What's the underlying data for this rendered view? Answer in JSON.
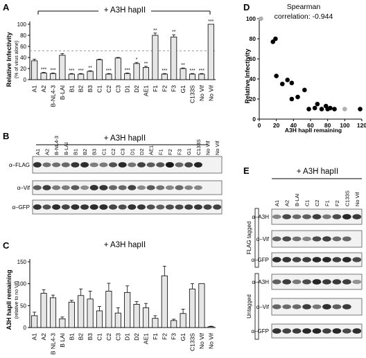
{
  "panel_letters": {
    "a": "A",
    "b": "B",
    "c": "C",
    "d": "D",
    "e": "E"
  },
  "treatment_label": "+ A3H hapII",
  "lanes_bc": [
    "A1",
    "A2",
    "B-NL4-3",
    "B-LAI",
    "B1",
    "B2",
    "B3",
    "C1",
    "C2",
    "C3",
    "D1",
    "D2",
    "AE1",
    "F1",
    "F2",
    "F3",
    "G1",
    "C133S",
    "No Vif",
    "No Vif"
  ],
  "lanes_e": [
    "A1",
    "A2",
    "B-LAI",
    "C1",
    "C2",
    "F1",
    "F2",
    "C133S",
    "No Vif"
  ],
  "blot_b": {
    "labels": [
      "α–FLAG",
      "α–Vif",
      "α–GFP"
    ]
  },
  "blot_e": {
    "groups": [
      {
        "name": "FLAG tagged",
        "rows": [
          "α–A3H",
          "α–Vif",
          "α–GFP"
        ]
      },
      {
        "name": "Untagged",
        "rows": [
          "α–A3H",
          "α–Vif",
          "α–GFP"
        ]
      }
    ]
  },
  "chart_data": [
    {
      "panel": "A",
      "type": "bar",
      "title": "+ A3H hapII",
      "ylabel": "Relative Infectivity",
      "ylabel_sub": "(% of virus alone)",
      "ylim": [
        0,
        100
      ],
      "yticks": [
        0,
        20,
        40,
        60,
        80,
        100
      ],
      "reference_line": 52,
      "categories": [
        "A1",
        "A2",
        "B-NL4-3",
        "B-LAI",
        "B1",
        "B2",
        "B3",
        "C1",
        "C2",
        "C3",
        "D1",
        "D2",
        "AE1",
        "F1",
        "F2",
        "F3",
        "G1",
        "C133S",
        "No Vif",
        "No Vif"
      ],
      "values": [
        34,
        12,
        11,
        44,
        10,
        10,
        15,
        36,
        10,
        39,
        11,
        29,
        22,
        80,
        10,
        77,
        20,
        10,
        10,
        100
      ],
      "errors": [
        3,
        1,
        1,
        3,
        1,
        1,
        1,
        1,
        1,
        1,
        1,
        2,
        2,
        4,
        1,
        4,
        1,
        1,
        1,
        0
      ],
      "significance": [
        "",
        "***",
        "***",
        "",
        "***",
        "***",
        "**",
        "",
        "***",
        "",
        "***",
        "*",
        "**",
        "**",
        "***",
        "**",
        "**",
        "***",
        "***",
        "***"
      ]
    },
    {
      "panel": "C",
      "type": "bar",
      "title": "+ A3H hapII",
      "ylabel": "A3H hapII remaining",
      "ylabel_sub": "(relative to no Vif)",
      "ylim": [
        0,
        150
      ],
      "yticks": [
        0,
        50,
        100,
        150
      ],
      "categories": [
        "A1",
        "A2",
        "B NL4-3",
        "B LAI",
        "B1",
        "B2",
        "B3",
        "C1",
        "C2",
        "C3",
        "D1",
        "D2",
        "AE1",
        "F1",
        "F2",
        "F3",
        "G1",
        "C133S",
        "No Vif",
        "No Vif"
      ],
      "values": [
        27,
        78,
        68,
        20,
        58,
        73,
        65,
        38,
        83,
        33,
        80,
        53,
        45,
        21,
        118,
        16,
        32,
        88,
        100,
        2
      ],
      "errors": [
        8,
        8,
        6,
        4,
        4,
        15,
        18,
        10,
        18,
        12,
        15,
        6,
        10,
        6,
        22,
        3,
        10,
        12,
        0,
        1
      ]
    },
    {
      "panel": "D",
      "type": "scatter",
      "title": "Spearman correlation:  -0.944",
      "xlabel": "A3H hapII remaining",
      "ylabel": "Relative Infectivity",
      "xlim": [
        0,
        120
      ],
      "ylim": [
        0,
        100
      ],
      "xticks": [
        0,
        20,
        40,
        60,
        80,
        100,
        120
      ],
      "yticks": [
        0,
        20,
        40,
        60,
        80,
        100
      ],
      "colors": {
        "points": "#000000",
        "controls": "#b0b0b0"
      },
      "points": [
        [
          16,
          77
        ],
        [
          19,
          80
        ],
        [
          20,
          43
        ],
        [
          27,
          35
        ],
        [
          33,
          39
        ],
        [
          38,
          20
        ],
        [
          38,
          36
        ],
        [
          45,
          22
        ],
        [
          53,
          29
        ],
        [
          58,
          10
        ],
        [
          65,
          11
        ],
        [
          68,
          15
        ],
        [
          73,
          10
        ],
        [
          78,
          13
        ],
        [
          80,
          10
        ],
        [
          83,
          11
        ],
        [
          88,
          10
        ],
        [
          118,
          10
        ]
      ],
      "controls": [
        [
          2,
          100
        ],
        [
          100,
          10
        ]
      ]
    }
  ]
}
